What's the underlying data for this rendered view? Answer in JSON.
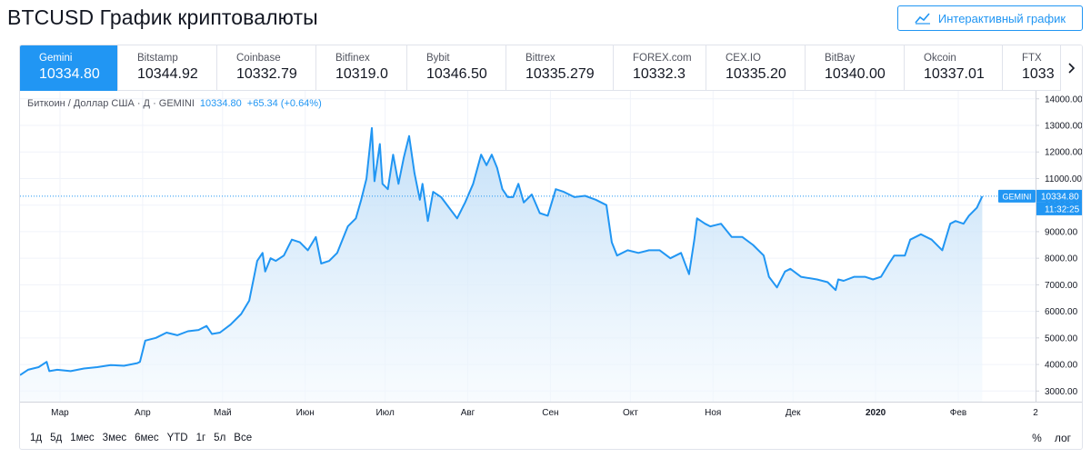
{
  "title": "BTCUSD График криптовалюты",
  "interactive_button": {
    "label": "Интерактивный график",
    "icon": "line-chart-icon"
  },
  "tabs": [
    {
      "exchange": "Gemini",
      "price": "10334.80",
      "active": true
    },
    {
      "exchange": "Bitstamp",
      "price": "10344.92"
    },
    {
      "exchange": "Coinbase",
      "price": "10332.79"
    },
    {
      "exchange": "Bitfinex",
      "price": "10319.0"
    },
    {
      "exchange": "Bybit",
      "price": "10346.50"
    },
    {
      "exchange": "Bittrex",
      "price": "10335.279"
    },
    {
      "exchange": "FOREX.com",
      "price": "10332.3"
    },
    {
      "exchange": "CEX.IO",
      "price": "10335.20"
    },
    {
      "exchange": "BitBay",
      "price": "10340.00"
    },
    {
      "exchange": "Okcoin",
      "price": "10337.01"
    },
    {
      "exchange": "FTX",
      "price": "1033"
    }
  ],
  "legend": {
    "symbol": "Биткоин / Доллар США · Д · GEMINI",
    "value": "10334.80",
    "change": "+65.34 (+0.64%)"
  },
  "price_label": {
    "name": "GEMINI",
    "value": "10334.80",
    "time": "11:32:25"
  },
  "ranges": [
    "1д",
    "5д",
    "1мес",
    "3мес",
    "6мес",
    "YTD",
    "1г",
    "5л",
    "Все"
  ],
  "bottom_right": {
    "percent": "%",
    "log": "лог"
  },
  "colors": {
    "accent": "#2196f3",
    "line": "#2196f3",
    "fill_top": "#bcdcf7",
    "fill_bottom": "#f3f9fe"
  },
  "chart_data": {
    "type": "area",
    "series": [
      {
        "points": [
          [
            "2019-02-14",
            3600
          ],
          [
            "2019-02-17",
            3800
          ],
          [
            "2019-02-21",
            3900
          ],
          [
            "2019-02-24",
            4100
          ],
          [
            "2019-02-25",
            3750
          ],
          [
            "2019-02-28",
            3800
          ],
          [
            "2019-03-05",
            3750
          ],
          [
            "2019-03-10",
            3850
          ],
          [
            "2019-03-15",
            3900
          ],
          [
            "2019-03-20",
            3980
          ],
          [
            "2019-03-25",
            3950
          ],
          [
            "2019-03-30",
            4050
          ],
          [
            "2019-03-31",
            4100
          ],
          [
            "2019-04-02",
            4900
          ],
          [
            "2019-04-06",
            5000
          ],
          [
            "2019-04-10",
            5200
          ],
          [
            "2019-04-14",
            5100
          ],
          [
            "2019-04-18",
            5250
          ],
          [
            "2019-04-22",
            5300
          ],
          [
            "2019-04-25",
            5450
          ],
          [
            "2019-04-27",
            5150
          ],
          [
            "2019-04-30",
            5200
          ],
          [
            "2019-05-04",
            5500
          ],
          [
            "2019-05-08",
            5900
          ],
          [
            "2019-05-11",
            6400
          ],
          [
            "2019-05-13",
            7400
          ],
          [
            "2019-05-14",
            7900
          ],
          [
            "2019-05-16",
            8200
          ],
          [
            "2019-05-17",
            7500
          ],
          [
            "2019-05-19",
            8000
          ],
          [
            "2019-05-21",
            7900
          ],
          [
            "2019-05-24",
            8100
          ],
          [
            "2019-05-27",
            8700
          ],
          [
            "2019-05-30",
            8600
          ],
          [
            "2019-06-02",
            8300
          ],
          [
            "2019-06-05",
            8800
          ],
          [
            "2019-06-07",
            7800
          ],
          [
            "2019-06-10",
            7900
          ],
          [
            "2019-06-13",
            8200
          ],
          [
            "2019-06-15",
            8700
          ],
          [
            "2019-06-17",
            9200
          ],
          [
            "2019-06-20",
            9500
          ],
          [
            "2019-06-22",
            10200
          ],
          [
            "2019-06-24",
            11000
          ],
          [
            "2019-06-26",
            12900
          ],
          [
            "2019-06-27",
            10900
          ],
          [
            "2019-06-29",
            12300
          ],
          [
            "2019-06-30",
            10800
          ],
          [
            "2019-07-02",
            10600
          ],
          [
            "2019-07-04",
            11900
          ],
          [
            "2019-07-06",
            10800
          ],
          [
            "2019-07-08",
            11800
          ],
          [
            "2019-07-10",
            12600
          ],
          [
            "2019-07-12",
            11200
          ],
          [
            "2019-07-14",
            10200
          ],
          [
            "2019-07-15",
            10800
          ],
          [
            "2019-07-17",
            9400
          ],
          [
            "2019-07-19",
            10500
          ],
          [
            "2019-07-22",
            10300
          ],
          [
            "2019-07-25",
            9900
          ],
          [
            "2019-07-28",
            9500
          ],
          [
            "2019-07-31",
            10100
          ],
          [
            "2019-08-03",
            10800
          ],
          [
            "2019-08-06",
            11900
          ],
          [
            "2019-08-08",
            11500
          ],
          [
            "2019-08-10",
            11900
          ],
          [
            "2019-08-12",
            11400
          ],
          [
            "2019-08-14",
            10600
          ],
          [
            "2019-08-16",
            10300
          ],
          [
            "2019-08-18",
            10300
          ],
          [
            "2019-08-20",
            10800
          ],
          [
            "2019-08-22",
            10100
          ],
          [
            "2019-08-25",
            10400
          ],
          [
            "2019-08-28",
            9700
          ],
          [
            "2019-08-31",
            9600
          ],
          [
            "2019-09-03",
            10600
          ],
          [
            "2019-09-06",
            10500
          ],
          [
            "2019-09-10",
            10300
          ],
          [
            "2019-09-14",
            10350
          ],
          [
            "2019-09-18",
            10200
          ],
          [
            "2019-09-22",
            10000
          ],
          [
            "2019-09-24",
            8600
          ],
          [
            "2019-09-26",
            8100
          ],
          [
            "2019-09-30",
            8300
          ],
          [
            "2019-10-04",
            8200
          ],
          [
            "2019-10-08",
            8300
          ],
          [
            "2019-10-12",
            8300
          ],
          [
            "2019-10-16",
            8000
          ],
          [
            "2019-10-20",
            8200
          ],
          [
            "2019-10-23",
            7400
          ],
          [
            "2019-10-25",
            8700
          ],
          [
            "2019-10-26",
            9500
          ],
          [
            "2019-10-29",
            9300
          ],
          [
            "2019-10-31",
            9200
          ],
          [
            "2019-11-04",
            9300
          ],
          [
            "2019-11-08",
            8800
          ],
          [
            "2019-11-12",
            8800
          ],
          [
            "2019-11-16",
            8500
          ],
          [
            "2019-11-20",
            8100
          ],
          [
            "2019-11-22",
            7300
          ],
          [
            "2019-11-25",
            6900
          ],
          [
            "2019-11-28",
            7500
          ],
          [
            "2019-11-30",
            7600
          ],
          [
            "2019-12-04",
            7300
          ],
          [
            "2019-12-10",
            7200
          ],
          [
            "2019-12-14",
            7100
          ],
          [
            "2019-12-17",
            6800
          ],
          [
            "2019-12-18",
            7200
          ],
          [
            "2019-12-20",
            7150
          ],
          [
            "2019-12-24",
            7300
          ],
          [
            "2019-12-28",
            7300
          ],
          [
            "2019-12-31",
            7200
          ],
          [
            "2020-01-03",
            7300
          ],
          [
            "2020-01-06",
            7800
          ],
          [
            "2020-01-08",
            8100
          ],
          [
            "2020-01-12",
            8100
          ],
          [
            "2020-01-14",
            8700
          ],
          [
            "2020-01-18",
            8900
          ],
          [
            "2020-01-22",
            8700
          ],
          [
            "2020-01-26",
            8300
          ],
          [
            "2020-01-29",
            9300
          ],
          [
            "2020-01-31",
            9400
          ],
          [
            "2020-02-03",
            9300
          ],
          [
            "2020-02-05",
            9600
          ],
          [
            "2020-02-08",
            9900
          ],
          [
            "2020-02-10",
            10334.8
          ]
        ]
      }
    ],
    "y_ticks": [
      3000,
      4000,
      5000,
      6000,
      7000,
      8000,
      9000,
      10000,
      11000,
      12000,
      13000,
      14000
    ],
    "y_tick_labels": [
      "3000.00",
      "4000.00",
      "5000.00",
      "6000.00",
      "7000.00",
      "8000.00",
      "9000.00",
      "10000.00",
      "11000.00",
      "12000.00",
      "13000.00",
      "14000.00"
    ],
    "x_ticks": [
      {
        "date": "2019-03-01",
        "label": "Мар"
      },
      {
        "date": "2019-04-01",
        "label": "Апр"
      },
      {
        "date": "2019-05-01",
        "label": "Май"
      },
      {
        "date": "2019-06-01",
        "label": "Июн"
      },
      {
        "date": "2019-07-01",
        "label": "Июл"
      },
      {
        "date": "2019-08-01",
        "label": "Авг"
      },
      {
        "date": "2019-09-01",
        "label": "Сен"
      },
      {
        "date": "2019-10-01",
        "label": "Окт"
      },
      {
        "date": "2019-11-01",
        "label": "Ноя"
      },
      {
        "date": "2019-12-01",
        "label": "Дек"
      },
      {
        "date": "2020-01-01",
        "label": "2020",
        "bold": true
      },
      {
        "date": "2020-02-01",
        "label": "Фев"
      },
      {
        "date": "2020-03-01",
        "label": "2"
      }
    ],
    "x_range": [
      "2019-02-14",
      "2020-03-01"
    ],
    "ylim": [
      2600,
      14300
    ],
    "last_value": 10334.8,
    "grid": true
  }
}
